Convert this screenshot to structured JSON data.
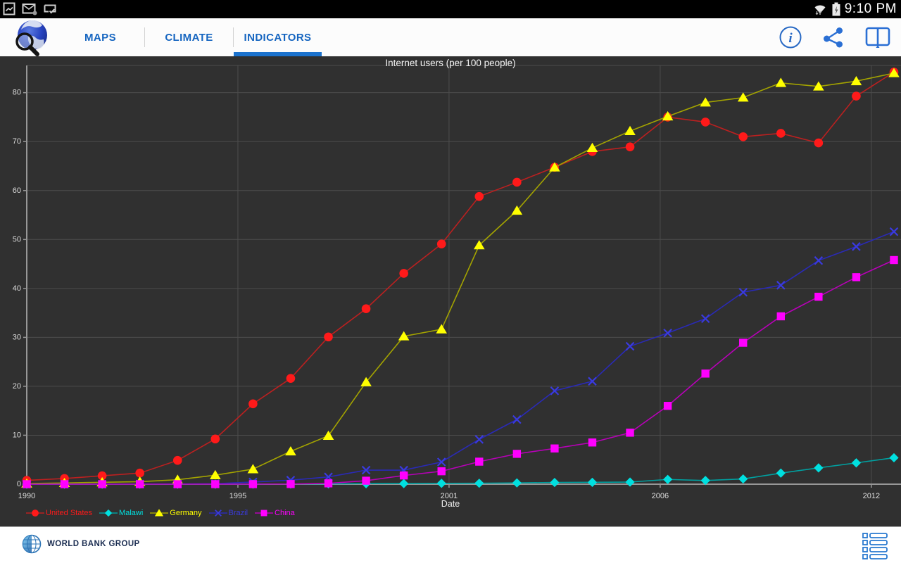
{
  "status_bar": {
    "time": "9:10 PM",
    "icons_left": [
      "screenshot-icon",
      "email-icon",
      "sync-check-icon"
    ],
    "icons_right": [
      "wifi-icon",
      "battery-charging-icon"
    ]
  },
  "app_bar": {
    "accent_color": "#1565c0",
    "tabs": [
      {
        "label": "MAPS",
        "active": false
      },
      {
        "label": "CLIMATE",
        "active": false
      },
      {
        "label": "INDICATORS",
        "active": true
      }
    ],
    "actions": [
      "info-icon",
      "share-icon",
      "book-icon"
    ]
  },
  "chart_data": {
    "type": "line",
    "title": "Internet users (per 100 people)",
    "xlabel": "Date",
    "ylabel": "",
    "grid": true,
    "legend_position": "bottom-left",
    "background": "#303030",
    "xlim": [
      1990,
      2013.2
    ],
    "ylim": [
      0,
      85.6
    ],
    "x": [
      1990,
      1991,
      1992,
      1993,
      1994,
      1995,
      1996,
      1997,
      1998,
      1999,
      2000,
      2001,
      2002,
      2003,
      2004,
      2005,
      2006,
      2007,
      2008,
      2009,
      2010,
      2011,
      2012,
      2013
    ],
    "x_ticks": [
      {
        "label": "1990",
        "pos": 1990
      },
      {
        "label": "1995",
        "pos": 1995.6
      },
      {
        "label": "2001",
        "pos": 2001.2
      },
      {
        "label": "2006",
        "pos": 2006.8
      },
      {
        "label": "2012",
        "pos": 2012.4
      }
    ],
    "y_ticks": [
      0,
      10,
      20,
      30,
      40,
      50,
      60,
      70,
      80
    ],
    "series": [
      {
        "name": "United States",
        "marker": "circle",
        "color": "#ff1a1a",
        "line_color": "#bc2020",
        "values": [
          0.78,
          1.16,
          1.72,
          2.27,
          4.86,
          9.24,
          16.42,
          21.62,
          30.09,
          35.85,
          43.08,
          49.08,
          58.79,
          61.7,
          64.76,
          67.97,
          68.93,
          75.0,
          74.0,
          71.0,
          71.69,
          69.73,
          79.3,
          84.2
        ]
      },
      {
        "name": "Malawi",
        "marker": "diamond",
        "color": "#00e0e0",
        "line_color": "#00a0a0",
        "values": [
          0,
          0,
          0,
          0,
          0,
          0,
          0.01,
          0.03,
          0.07,
          0.11,
          0.13,
          0.17,
          0.19,
          0.26,
          0.35,
          0.38,
          0.43,
          0.97,
          0.75,
          1.07,
          2.26,
          3.33,
          4.35,
          5.4
        ]
      },
      {
        "name": "Germany",
        "marker": "triangle",
        "color": "#ffff00",
        "line_color": "#a3a300",
        "values": [
          0.13,
          0.25,
          0.39,
          0.51,
          0.91,
          1.84,
          3.07,
          6.71,
          9.89,
          20.84,
          30.22,
          31.65,
          48.82,
          55.9,
          64.73,
          68.71,
          72.16,
          75.16,
          78.0,
          79.0,
          82.0,
          81.27,
          82.35,
          84.0
        ]
      },
      {
        "name": "Brazil",
        "marker": "x",
        "color": "#3a3ade",
        "line_color": "#2a2ab6",
        "values": [
          0,
          0,
          0,
          0.03,
          0.04,
          0.1,
          0.44,
          0.82,
          1.48,
          2.87,
          2.87,
          4.53,
          9.15,
          13.21,
          19.07,
          21.02,
          28.18,
          30.88,
          33.83,
          39.22,
          40.65,
          45.69,
          48.56,
          51.6
        ]
      },
      {
        "name": "China",
        "marker": "square",
        "color": "#ff00ff",
        "line_color": "#b800b8",
        "values": [
          0,
          0,
          0,
          0,
          0,
          0.01,
          0.01,
          0.03,
          0.17,
          0.71,
          1.78,
          2.64,
          4.6,
          6.2,
          7.3,
          8.52,
          10.52,
          16.0,
          22.6,
          28.9,
          34.3,
          38.3,
          42.3,
          45.8
        ]
      }
    ]
  },
  "footer": {
    "brand": "WORLD BANK GROUP"
  }
}
